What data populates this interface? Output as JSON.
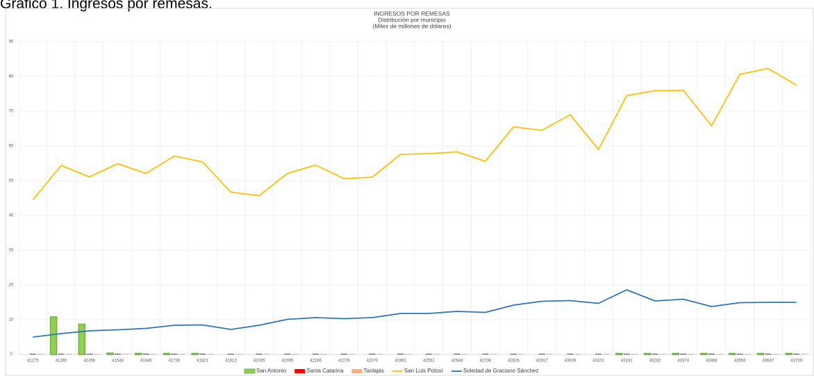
{
  "heading": "Gráfico 1. Ingresos por remesas.",
  "chart_data": {
    "type": "combo",
    "title": "INGRESOS POR REMESAS",
    "subtitle": "Distribución por municipio",
    "units": "(Miles de millones de dólares)",
    "categories": [
      "41275",
      "41365",
      "41456",
      "41548",
      "41640",
      "41730",
      "41821",
      "41913",
      "42005",
      "42095",
      "42186",
      "42278",
      "42370",
      "42461",
      "42552",
      "42644",
      "42736",
      "42826",
      "42917",
      "43009",
      "43101",
      "43191",
      "43282",
      "43374",
      "43466",
      "43556",
      "43647",
      "43739"
    ],
    "ylim": [
      0,
      90
    ],
    "yticks": [
      0,
      10,
      20,
      30,
      40,
      50,
      60,
      70,
      80,
      90
    ],
    "grid": true,
    "legend": "bottom",
    "series": [
      {
        "name": "San Antonio",
        "type": "bar",
        "color": "#92d050",
        "values": [
          0,
          10.8,
          8.7,
          0.4,
          0.3,
          0.3,
          0.3,
          0,
          0,
          0,
          0,
          0,
          0,
          0,
          0,
          0,
          0,
          0,
          0,
          0,
          0,
          0.3,
          0.3,
          0.3,
          0.3,
          0.3,
          0.3,
          0.3
        ]
      },
      {
        "name": "Santa Catarina",
        "type": "bar",
        "color": "#ff0000",
        "values": [
          0.2,
          0.2,
          0.2,
          0.2,
          0.2,
          0.2,
          0.2,
          0.2,
          0.2,
          0.2,
          0.2,
          0.2,
          0.2,
          0.2,
          0.2,
          0.2,
          0.2,
          0.2,
          0.2,
          0.2,
          0.2,
          0.2,
          0.2,
          0.2,
          0.2,
          0.2,
          0.2,
          0.2
        ]
      },
      {
        "name": "Tanlajás",
        "type": "bar",
        "color": "#f4b183",
        "values": [
          0.2,
          0.2,
          0.2,
          0.2,
          0.2,
          0.2,
          0.2,
          0.2,
          0.2,
          0.2,
          0.2,
          0.2,
          0.2,
          0.2,
          0.2,
          0.2,
          0.2,
          0.2,
          0.2,
          0.2,
          0.2,
          0.2,
          0.2,
          0.2,
          0.2,
          0.2,
          0.2,
          0.2
        ]
      },
      {
        "name": "San Luis Potosí",
        "type": "line",
        "color": "#ffc000",
        "values": [
          44.5,
          54.4,
          51.1,
          54.9,
          52.1,
          57.1,
          55.4,
          46.7,
          45.7,
          52.1,
          54.5,
          50.6,
          51.0,
          57.6,
          57.8,
          58.3,
          55.6,
          65.5,
          64.5,
          69.0,
          59.0,
          74.5,
          75.9,
          76.0,
          65.8,
          80.6,
          82.3,
          77.5
        ]
      },
      {
        "name": "Soledad de Graciano Sánchez",
        "type": "line",
        "color": "#2e75b6",
        "values": [
          5.0,
          6.0,
          6.8,
          7.1,
          7.5,
          8.4,
          8.5,
          7.2,
          8.4,
          10.1,
          10.6,
          10.3,
          10.6,
          11.8,
          11.8,
          12.4,
          12.1,
          14.2,
          15.3,
          15.5,
          14.7,
          18.6,
          15.4,
          15.9,
          13.8,
          14.9,
          15.0,
          15.0
        ]
      }
    ]
  }
}
